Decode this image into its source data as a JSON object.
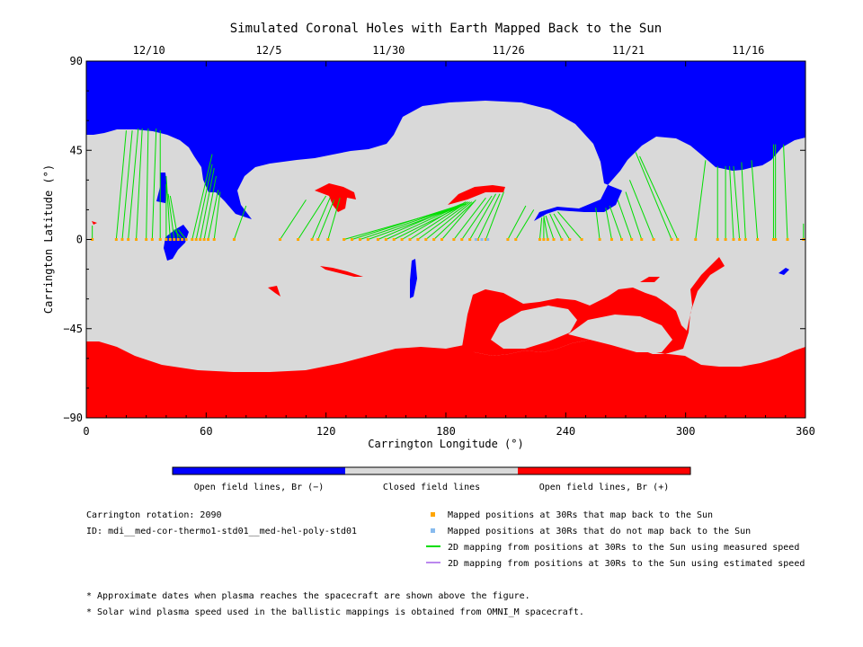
{
  "chart_data": {
    "type": "map",
    "title": "Simulated Coronal Holes with Earth Mapped Back to the Sun",
    "xlabel": "Carrington Longitude (°)",
    "ylabel": "Carrington Latitude (°)",
    "xlim": [
      0,
      360
    ],
    "ylim": [
      -90,
      90
    ],
    "x_ticks": [
      "0",
      "60",
      "120",
      "180",
      "240",
      "300",
      "360"
    ],
    "y_ticks": [
      "90",
      "45",
      "0",
      "-45",
      "-90"
    ],
    "date_ticks": [
      {
        "label": "12/10",
        "lon": 30
      },
      {
        "label": "12/5",
        "lon": 90
      },
      {
        "label": "11/30",
        "lon": 150
      },
      {
        "label": "11/26",
        "lon": 210
      },
      {
        "label": "11/21",
        "lon": 270
      },
      {
        "label": "11/16",
        "lon": 330
      }
    ],
    "colors": {
      "open_negative": "#0000ff",
      "closed": "#d9d9d9",
      "open_positive": "#ff0000",
      "mapped_back": "#ffa500",
      "not_mapped_back": "#88bbee",
      "measured_speed_line": "#00dd00",
      "estimated_speed_line": "#bb88ee"
    },
    "colorbar_labels": [
      "Open field lines, Br (−)",
      "Closed field lines",
      "Open field lines, Br (+)"
    ],
    "mappings": [
      {
        "lon": 3,
        "footLon": 3,
        "footLat": 7
      },
      {
        "lon": 15,
        "footLon": 20,
        "footLat": 55
      },
      {
        "lon": 18,
        "footLon": 23,
        "footLat": 55
      },
      {
        "lon": 21,
        "footLon": 26,
        "footLat": 56
      },
      {
        "lon": 25,
        "footLon": 28,
        "footLat": 56
      },
      {
        "lon": 30,
        "footLon": 31,
        "footLat": 56
      },
      {
        "lon": 33,
        "footLon": 35,
        "footLat": 56
      },
      {
        "lon": 37,
        "footLon": 37,
        "footLat": 55
      },
      {
        "lon": 40,
        "footLon": 40,
        "footLat": 28
      },
      {
        "lon": 42,
        "footLon": 40,
        "footLat": 32
      },
      {
        "lon": 44,
        "footLon": 41,
        "footLat": 23
      },
      {
        "lon": 46,
        "footLon": 42,
        "footLat": 22
      },
      {
        "lon": 48,
        "footLon": 44,
        "footLat": 5
      },
      {
        "lon": 50,
        "footLon": 46,
        "footLat": 5
      },
      {
        "lon": 53,
        "footLon": 63,
        "footLat": 43
      },
      {
        "lon": 55,
        "footLon": 63,
        "footLat": 38
      },
      {
        "lon": 57,
        "footLon": 64,
        "footLat": 36
      },
      {
        "lon": 59,
        "footLon": 65,
        "footLat": 32
      },
      {
        "lon": 61,
        "footLon": 66,
        "footLat": 25
      },
      {
        "lon": 64,
        "footLon": 67,
        "footLat": 24
      },
      {
        "lon": 74,
        "footLon": 80,
        "footLat": 17
      },
      {
        "lon": 97,
        "footLon": 110,
        "footLat": 20
      },
      {
        "lon": 106,
        "footLon": 120,
        "footLat": 22
      },
      {
        "lon": 113,
        "footLon": 122,
        "footLat": 21
      },
      {
        "lon": 116,
        "footLon": 124,
        "footLat": 20
      },
      {
        "lon": 121,
        "footLon": 127,
        "footLat": 21
      },
      {
        "lon": 129,
        "footLon": 185,
        "footLat": 16
      },
      {
        "lon": 133,
        "footLon": 186,
        "footLat": 17
      },
      {
        "lon": 137,
        "footLon": 187,
        "footLat": 17
      },
      {
        "lon": 141,
        "footLon": 188,
        "footLat": 17
      },
      {
        "lon": 146,
        "footLon": 188,
        "footLat": 18
      },
      {
        "lon": 150,
        "footLon": 189,
        "footLat": 18
      },
      {
        "lon": 154,
        "footLon": 190,
        "footLat": 18
      },
      {
        "lon": 158,
        "footLon": 190,
        "footLat": 19
      },
      {
        "lon": 162,
        "footLon": 191,
        "footLat": 19
      },
      {
        "lon": 166,
        "footLon": 192,
        "footLat": 19
      },
      {
        "lon": 170,
        "footLon": 193,
        "footLat": 19
      },
      {
        "lon": 174,
        "footLon": 194,
        "footLat": 19
      },
      {
        "lon": 178,
        "footLon": 195,
        "footLat": 20
      },
      {
        "lon": 184,
        "footLon": 200,
        "footLat": 21
      },
      {
        "lon": 188,
        "footLon": 203,
        "footLat": 22
      },
      {
        "lon": 192,
        "footLon": 205,
        "footLat": 23
      },
      {
        "lon": 196,
        "footLon": 207,
        "footLat": 23
      },
      {
        "lon": 200,
        "footLon": 209,
        "footLat": 24
      },
      {
        "lon": 211,
        "footLon": 220,
        "footLat": 17
      },
      {
        "lon": 215,
        "footLon": 224,
        "footLat": 15
      },
      {
        "lon": 227,
        "footLon": 228,
        "footLat": 11
      },
      {
        "lon": 229,
        "footLon": 229,
        "footLat": 11
      },
      {
        "lon": 231,
        "footLon": 229,
        "footLat": 12
      },
      {
        "lon": 234,
        "footLon": 230,
        "footLat": 12
      },
      {
        "lon": 238,
        "footLon": 232,
        "footLat": 13
      },
      {
        "lon": 242,
        "footLon": 234,
        "footLat": 13
      },
      {
        "lon": 248,
        "footLon": 236,
        "footLat": 14
      },
      {
        "lon": 257,
        "footLon": 255,
        "footLat": 16
      },
      {
        "lon": 263,
        "footLon": 260,
        "footLat": 16
      },
      {
        "lon": 268,
        "footLon": 262,
        "footLat": 17
      },
      {
        "lon": 273,
        "footLon": 266,
        "footLat": 20
      },
      {
        "lon": 278,
        "footLon": 270,
        "footLat": 24
      },
      {
        "lon": 284,
        "footLon": 272,
        "footLat": 30
      },
      {
        "lon": 293,
        "footLon": 275,
        "footLat": 44
      },
      {
        "lon": 296,
        "footLon": 277,
        "footLat": 42
      },
      {
        "lon": 305,
        "footLon": 310,
        "footLat": 40
      },
      {
        "lon": 316,
        "footLon": 316,
        "footLat": 37
      },
      {
        "lon": 320,
        "footLon": 320,
        "footLat": 37
      },
      {
        "lon": 324,
        "footLon": 322,
        "footLat": 37
      },
      {
        "lon": 327,
        "footLon": 324,
        "footLat": 37
      },
      {
        "lon": 330,
        "footLon": 328,
        "footLat": 39
      },
      {
        "lon": 336,
        "footLon": 333,
        "footLat": 40
      },
      {
        "lon": 344,
        "footLon": 344,
        "footLat": 48
      },
      {
        "lon": 345,
        "footLon": 345,
        "footLat": 48
      },
      {
        "lon": 351,
        "footLon": 349,
        "footLat": 48
      },
      {
        "lon": 359,
        "footLon": 359,
        "footLat": 8
      }
    ],
    "unmapped_points": [
      {
        "lon": 195
      },
      {
        "lon": 198
      },
      {
        "lon": 201
      }
    ]
  },
  "legend": {
    "mapped": "Mapped positions at 30Rs that map back to the Sun",
    "unmapped": "Mapped positions at 30Rs that do not map back to the Sun",
    "measured": "2D mapping from positions at 30Rs to the Sun using measured speed",
    "estimated": "2D mapping from positions at 30Rs to the Sun using estimated speed"
  },
  "info": {
    "rotation": "Carrington rotation: 2090",
    "id": "ID: mdi__med-cor-thermo1-std01__med-hel-poly-std01"
  },
  "notes": [
    "* Approximate dates when plasma reaches the spacecraft are shown above the figure.",
    "* Solar wind plasma speed used in the ballistic mappings is obtained from OMNI_M spacecraft."
  ]
}
